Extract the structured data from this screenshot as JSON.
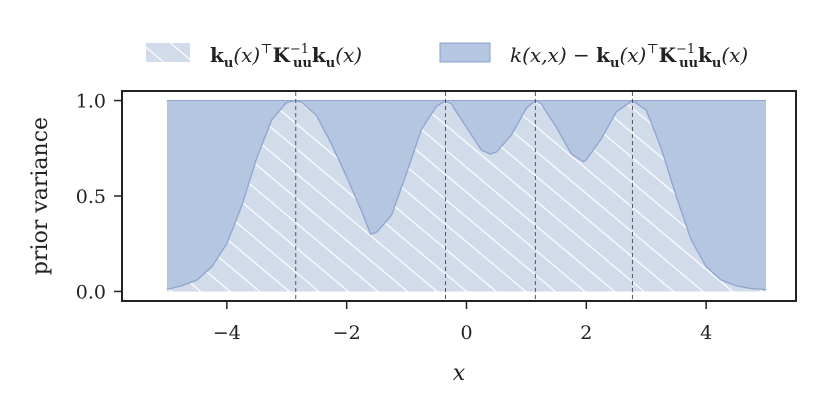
{
  "chart_data": {
    "type": "area",
    "xlabel": "x",
    "ylabel": "prior variance",
    "xlim": [
      -5.75,
      5.5
    ],
    "ylim": [
      -0.05,
      1.05
    ],
    "x_ticks": [
      -4,
      -2,
      0,
      2,
      4
    ],
    "x_tick_labels": [
      "−4",
      "−2",
      "0",
      "2",
      "4"
    ],
    "y_ticks": [
      0.0,
      0.5,
      1.0
    ],
    "y_tick_labels": [
      "0.0",
      "0.5",
      "1.0"
    ],
    "grid": false,
    "legend_position": "top",
    "inducing_points": [
      -2.85,
      -0.35,
      1.15,
      2.77
    ],
    "x": [
      -5.0,
      -4.75,
      -4.5,
      -4.25,
      -4.0,
      -3.75,
      -3.5,
      -3.25,
      -3.0,
      -2.85,
      -2.75,
      -2.5,
      -2.25,
      -2.0,
      -1.75,
      -1.6,
      -1.5,
      -1.25,
      -1.0,
      -0.75,
      -0.5,
      -0.35,
      -0.25,
      0.0,
      0.25,
      0.4,
      0.5,
      0.75,
      1.0,
      1.15,
      1.25,
      1.5,
      1.75,
      1.95,
      2.0,
      2.25,
      2.5,
      2.77,
      3.0,
      3.25,
      3.5,
      3.75,
      4.0,
      4.25,
      4.5,
      4.75,
      5.0
    ],
    "series": [
      {
        "name": "k_u(x)^T K_uu^{-1} k_u(x)",
        "color": "#d1dbea",
        "pattern": "hatch",
        "values": [
          0.01,
          0.03,
          0.06,
          0.13,
          0.25,
          0.45,
          0.7,
          0.9,
          0.99,
          1.0,
          0.99,
          0.92,
          0.77,
          0.6,
          0.42,
          0.3,
          0.31,
          0.4,
          0.62,
          0.85,
          0.97,
          1.0,
          0.98,
          0.86,
          0.74,
          0.72,
          0.73,
          0.82,
          0.96,
          1.0,
          0.98,
          0.86,
          0.72,
          0.68,
          0.69,
          0.8,
          0.94,
          1.0,
          0.95,
          0.75,
          0.5,
          0.27,
          0.13,
          0.06,
          0.03,
          0.015,
          0.01
        ]
      },
      {
        "name": "k(x,x) − k_u(x)^T K_uu^{-1} k_u(x)",
        "color": "#b5c6e0",
        "values": [
          0.99,
          0.97,
          0.94,
          0.87,
          0.75,
          0.55,
          0.3,
          0.1,
          0.01,
          0.0,
          0.01,
          0.08,
          0.23,
          0.4,
          0.58,
          0.7,
          0.69,
          0.6,
          0.38,
          0.15,
          0.03,
          0.0,
          0.02,
          0.14,
          0.26,
          0.28,
          0.27,
          0.18,
          0.04,
          0.0,
          0.02,
          0.14,
          0.28,
          0.32,
          0.31,
          0.2,
          0.06,
          0.0,
          0.05,
          0.25,
          0.5,
          0.73,
          0.87,
          0.94,
          0.97,
          0.985,
          0.99
        ]
      }
    ]
  }
}
